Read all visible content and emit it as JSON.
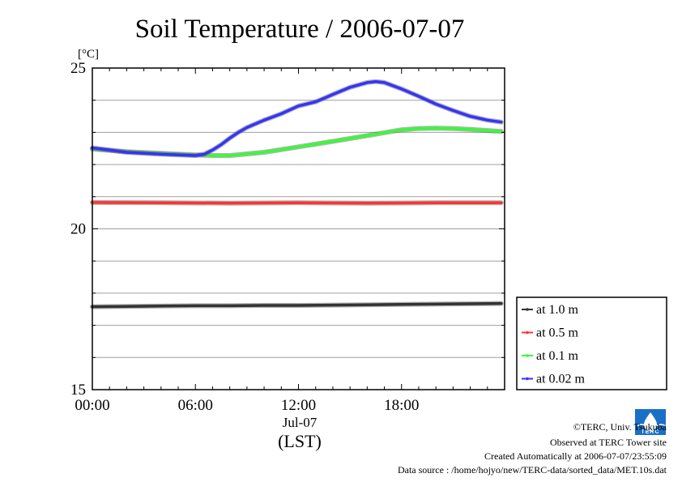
{
  "chart_data": {
    "type": "line",
    "title": "Soil Temperature / 2006-07-07",
    "ylabel": "[°C]",
    "xlabel": "(LST)",
    "date_label": "Jul-07",
    "ylim": [
      15,
      25
    ],
    "xlim": [
      0,
      24
    ],
    "x_ticks": [
      0,
      6,
      12,
      18
    ],
    "x_tick_labels": [
      "00:00",
      "06:00",
      "12:00",
      "18:00"
    ],
    "y_ticks": [
      15,
      20,
      25
    ],
    "y_tick_labels": [
      "15",
      "20",
      "25"
    ],
    "y_minor_grid": [
      16,
      17,
      18,
      19,
      21,
      22,
      23,
      24
    ],
    "grid": true,
    "legend_position": "right, lower",
    "series": [
      {
        "name": "at 1.0 m",
        "color": "#333333",
        "x": [
          0,
          2,
          4,
          6,
          8,
          10,
          12,
          14,
          16,
          18,
          20,
          22,
          23.8
        ],
        "values": [
          17.58,
          17.59,
          17.6,
          17.61,
          17.61,
          17.62,
          17.62,
          17.63,
          17.64,
          17.65,
          17.66,
          17.67,
          17.68
        ]
      },
      {
        "name": "at 0.5 m",
        "color": "#ff3333",
        "x": [
          0,
          4,
          8,
          12,
          16,
          20,
          23.8
        ],
        "values": [
          20.82,
          20.81,
          20.8,
          20.81,
          20.8,
          20.81,
          20.81
        ]
      },
      {
        "name": "at 0.1 m",
        "color": "#33ff33",
        "x": [
          0,
          2,
          4,
          6,
          7,
          8,
          10,
          12,
          14,
          16,
          18,
          19,
          20,
          21,
          22,
          23.8
        ],
        "values": [
          22.48,
          22.4,
          22.35,
          22.3,
          22.28,
          22.28,
          22.38,
          22.55,
          22.72,
          22.9,
          23.08,
          23.12,
          23.13,
          23.12,
          23.09,
          23.03
        ]
      },
      {
        "name": "at 0.02 m",
        "color": "#3333ff",
        "x": [
          0,
          2,
          4,
          6,
          6.5,
          7,
          7.5,
          8,
          8.5,
          9,
          10,
          11,
          12,
          13,
          14,
          15,
          16,
          16.5,
          17,
          18,
          19,
          20,
          21,
          22,
          23,
          23.8
        ],
        "values": [
          22.52,
          22.38,
          22.32,
          22.28,
          22.32,
          22.45,
          22.62,
          22.82,
          23.0,
          23.15,
          23.38,
          23.58,
          23.82,
          23.95,
          24.18,
          24.4,
          24.55,
          24.58,
          24.55,
          24.35,
          24.12,
          23.88,
          23.68,
          23.5,
          23.38,
          23.32
        ]
      }
    ]
  },
  "credits": {
    "logo_text": "TERC",
    "line1": "©TERC, Univ. Tsukuba",
    "line2": "Observed at TERC Tower site",
    "line3": "Created Automatically at 2006-07-07/23:55:09",
    "line4": "Data source : /home/hojyo/new/TERC-data/sorted_data/MET.10s.dat"
  }
}
